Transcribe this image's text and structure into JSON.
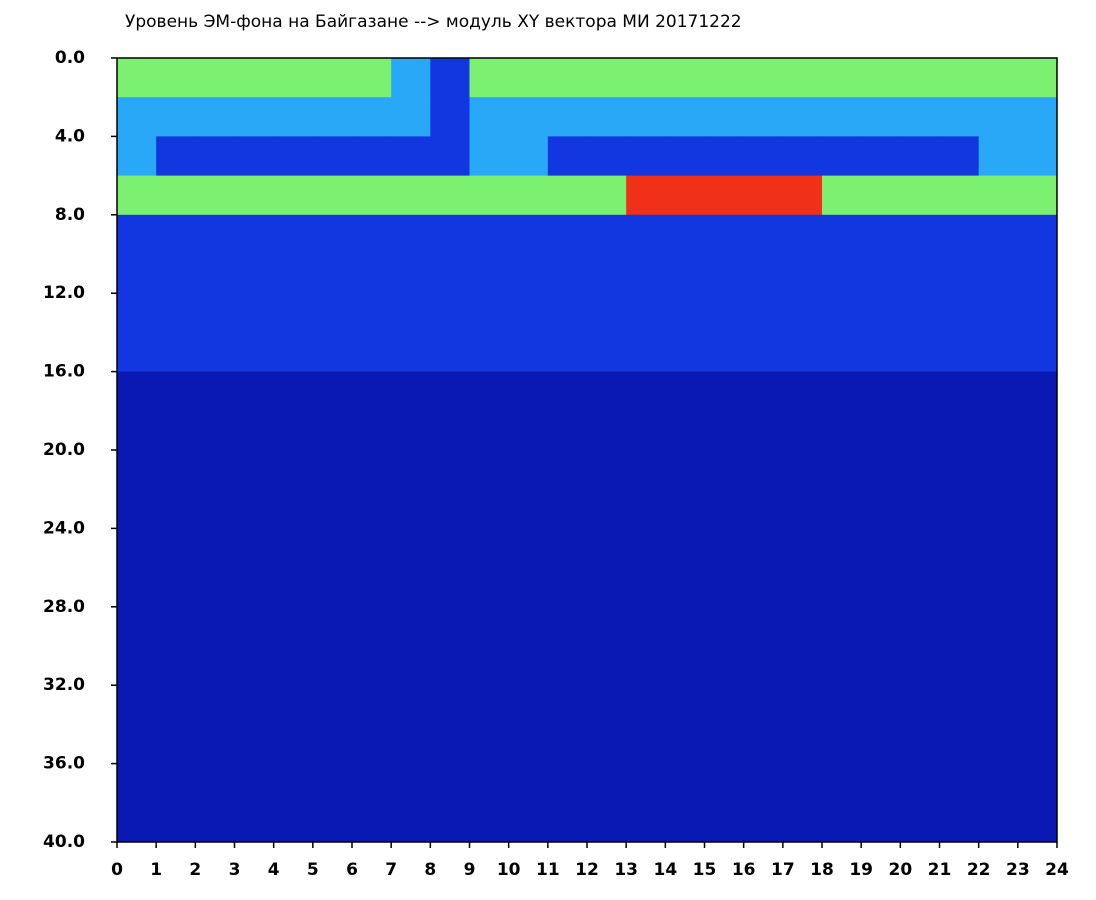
{
  "chart_data": {
    "type": "heatmap",
    "title": "Уровень ЭМ-фона на Байгазане  -->  модуль XY вектора МИ  20171222",
    "xlim": [
      0,
      24
    ],
    "xticks": [
      0,
      1,
      2,
      3,
      4,
      5,
      6,
      7,
      8,
      9,
      10,
      11,
      12,
      13,
      14,
      15,
      16,
      17,
      18,
      19,
      20,
      21,
      22,
      23,
      24
    ],
    "ylim": [
      0,
      40
    ],
    "y_inverted": true,
    "yticks": [
      {
        "value": 0,
        "label": "0.0"
      },
      {
        "value": 4,
        "label": "4.0"
      },
      {
        "value": 8,
        "label": "8.0"
      },
      {
        "value": 12,
        "label": "12.0"
      },
      {
        "value": 16,
        "label": "16.0"
      },
      {
        "value": 20,
        "label": "20.0"
      },
      {
        "value": 24,
        "label": "24.0"
      },
      {
        "value": 28,
        "label": "28.0"
      },
      {
        "value": 32,
        "label": "32.0"
      },
      {
        "value": 36,
        "label": "36.0"
      },
      {
        "value": 40,
        "label": "40.0"
      }
    ],
    "xbins": [
      0,
      1,
      2,
      3,
      4,
      5,
      6,
      7,
      8,
      9,
      10,
      11,
      12,
      13,
      14,
      15,
      16,
      17,
      18,
      19,
      20,
      21,
      22,
      23,
      24
    ],
    "ybins": [
      0,
      2,
      4,
      6,
      8,
      10,
      12,
      14,
      16,
      18,
      20,
      22,
      24,
      26,
      28,
      30,
      32,
      34,
      36,
      38,
      40
    ],
    "colors": [
      "#0a18b4",
      "#1236e0",
      "#2aa8f8",
      "#7cf070",
      "#f03018"
    ],
    "z": [
      [
        3,
        3,
        3,
        3,
        3,
        3,
        3,
        2,
        1,
        3,
        3,
        3,
        3,
        3,
        3,
        3,
        3,
        3,
        3,
        3,
        3,
        3,
        3,
        3
      ],
      [
        2,
        2,
        2,
        2,
        2,
        2,
        2,
        2,
        1,
        2,
        2,
        2,
        2,
        2,
        2,
        2,
        2,
        2,
        2,
        2,
        2,
        2,
        2,
        2
      ],
      [
        2,
        1,
        1,
        1,
        1,
        1,
        1,
        1,
        1,
        2,
        2,
        1,
        1,
        1,
        1,
        1,
        1,
        1,
        1,
        1,
        1,
        1,
        2,
        2
      ],
      [
        3,
        3,
        3,
        3,
        3,
        3,
        3,
        3,
        3,
        3,
        3,
        3,
        3,
        4,
        4,
        4,
        4,
        4,
        3,
        3,
        3,
        3,
        3,
        3
      ],
      [
        1,
        1,
        1,
        1,
        1,
        1,
        1,
        1,
        1,
        1,
        1,
        1,
        1,
        1,
        1,
        1,
        1,
        1,
        1,
        1,
        1,
        1,
        1,
        1
      ],
      [
        1,
        1,
        1,
        1,
        1,
        1,
        1,
        1,
        1,
        1,
        1,
        1,
        1,
        1,
        1,
        1,
        1,
        1,
        1,
        1,
        1,
        1,
        1,
        1
      ],
      [
        1,
        1,
        1,
        1,
        1,
        1,
        1,
        1,
        1,
        1,
        1,
        1,
        1,
        1,
        1,
        1,
        1,
        1,
        1,
        1,
        1,
        1,
        1,
        1
      ],
      [
        1,
        1,
        1,
        1,
        1,
        1,
        1,
        1,
        1,
        1,
        1,
        1,
        1,
        1,
        1,
        1,
        1,
        1,
        1,
        1,
        1,
        1,
        1,
        1
      ],
      [
        0,
        0,
        0,
        0,
        0,
        0,
        0,
        0,
        0,
        0,
        0,
        0,
        0,
        0,
        0,
        0,
        0,
        0,
        0,
        0,
        0,
        0,
        0,
        0
      ],
      [
        0,
        0,
        0,
        0,
        0,
        0,
        0,
        0,
        0,
        0,
        0,
        0,
        0,
        0,
        0,
        0,
        0,
        0,
        0,
        0,
        0,
        0,
        0,
        0
      ],
      [
        0,
        0,
        0,
        0,
        0,
        0,
        0,
        0,
        0,
        0,
        0,
        0,
        0,
        0,
        0,
        0,
        0,
        0,
        0,
        0,
        0,
        0,
        0,
        0
      ],
      [
        0,
        0,
        0,
        0,
        0,
        0,
        0,
        0,
        0,
        0,
        0,
        0,
        0,
        0,
        0,
        0,
        0,
        0,
        0,
        0,
        0,
        0,
        0,
        0
      ],
      [
        0,
        0,
        0,
        0,
        0,
        0,
        0,
        0,
        0,
        0,
        0,
        0,
        0,
        0,
        0,
        0,
        0,
        0,
        0,
        0,
        0,
        0,
        0,
        0
      ],
      [
        0,
        0,
        0,
        0,
        0,
        0,
        0,
        0,
        0,
        0,
        0,
        0,
        0,
        0,
        0,
        0,
        0,
        0,
        0,
        0,
        0,
        0,
        0,
        0
      ],
      [
        0,
        0,
        0,
        0,
        0,
        0,
        0,
        0,
        0,
        0,
        0,
        0,
        0,
        0,
        0,
        0,
        0,
        0,
        0,
        0,
        0,
        0,
        0,
        0
      ],
      [
        0,
        0,
        0,
        0,
        0,
        0,
        0,
        0,
        0,
        0,
        0,
        0,
        0,
        0,
        0,
        0,
        0,
        0,
        0,
        0,
        0,
        0,
        0,
        0
      ],
      [
        0,
        0,
        0,
        0,
        0,
        0,
        0,
        0,
        0,
        0,
        0,
        0,
        0,
        0,
        0,
        0,
        0,
        0,
        0,
        0,
        0,
        0,
        0,
        0
      ],
      [
        0,
        0,
        0,
        0,
        0,
        0,
        0,
        0,
        0,
        0,
        0,
        0,
        0,
        0,
        0,
        0,
        0,
        0,
        0,
        0,
        0,
        0,
        0,
        0
      ],
      [
        0,
        0,
        0,
        0,
        0,
        0,
        0,
        0,
        0,
        0,
        0,
        0,
        0,
        0,
        0,
        0,
        0,
        0,
        0,
        0,
        0,
        0,
        0,
        0
      ],
      [
        0,
        0,
        0,
        0,
        0,
        0,
        0,
        0,
        0,
        0,
        0,
        0,
        0,
        0,
        0,
        0,
        0,
        0,
        0,
        0,
        0,
        0,
        0,
        0
      ]
    ]
  }
}
